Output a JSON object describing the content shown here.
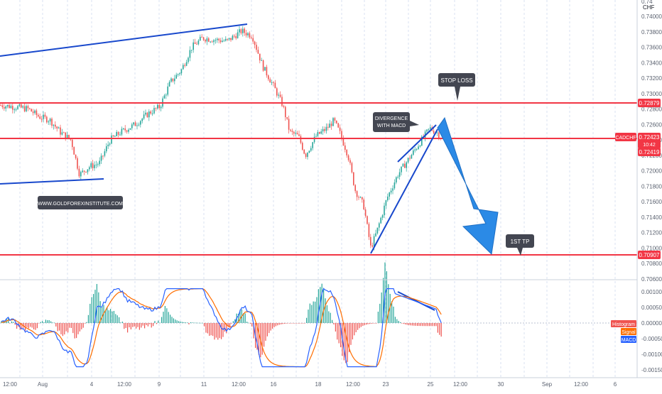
{
  "header": {
    "currency": "CHF"
  },
  "price_axis": {
    "ticks": [
      {
        "v": 0.74,
        "label": "0.74000"
      },
      {
        "v": 0.738,
        "label": "0.73800"
      },
      {
        "v": 0.736,
        "label": "0.73600"
      },
      {
        "v": 0.734,
        "label": "0.73400"
      },
      {
        "v": 0.732,
        "label": "0.73200"
      },
      {
        "v": 0.73,
        "label": "0.73000"
      },
      {
        "v": 0.728,
        "label": "0.72800"
      },
      {
        "v": 0.726,
        "label": "0.72600"
      },
      {
        "v": 0.724,
        "label": "0.72400"
      },
      {
        "v": 0.722,
        "label": "0.72200"
      },
      {
        "v": 0.72,
        "label": "0.72000"
      },
      {
        "v": 0.718,
        "label": "0.71800"
      },
      {
        "v": 0.716,
        "label": "0.71600"
      },
      {
        "v": 0.714,
        "label": "0.71400"
      },
      {
        "v": 0.712,
        "label": "0.71200"
      },
      {
        "v": 0.71,
        "label": "0.71000"
      },
      {
        "v": 0.708,
        "label": "0.70800"
      },
      {
        "v": 0.706,
        "label": "0.70600"
      }
    ]
  },
  "macd_axis": {
    "ticks": [
      {
        "v": 0.001,
        "label": "0.00100"
      },
      {
        "v": 0.0005,
        "label": "0.00050"
      },
      {
        "v": 0.0,
        "label": "0.00000"
      },
      {
        "v": -0.0005,
        "label": "-0.00050"
      },
      {
        "v": -0.001,
        "label": "-0.00100"
      },
      {
        "v": -0.0015,
        "label": "-0.00150"
      }
    ],
    "labels": {
      "histogram": "Histogram",
      "signal": "Signal",
      "macd": "MACD"
    }
  },
  "time_axis": {
    "labels": [
      "12:00",
      "Aug",
      "4",
      "12:00",
      "9",
      "11",
      "12:00",
      "16",
      "18",
      "12:00",
      "23",
      "25",
      "12:00",
      "30",
      "Sep",
      "12:00",
      "6"
    ]
  },
  "levels": {
    "stop_loss": {
      "price": 0.72879,
      "label": "0.72879"
    },
    "entry": {
      "price": 0.72419,
      "label": "0.72419"
    },
    "target": {
      "price": 0.70907,
      "label": "0.70907"
    },
    "current": {
      "price": 0.72423,
      "label": "0.72423",
      "symbol": "CADCHF",
      "countdown": "10:42"
    }
  },
  "annotations": {
    "stop_loss": "STOP LOSS",
    "target": "1ST TP",
    "divergence": [
      "DIVERGENCE",
      "WITH MACD"
    ],
    "website": "WWW.GOLDFOREXINSTITUTE.COM"
  },
  "colors": {
    "up": "#26a69a",
    "down": "#ef5350",
    "level": "#f23645",
    "trend": "#1848cc",
    "arrow": "#2b8ae6",
    "macd": "#2962ff",
    "signal": "#ff6d00",
    "note_bg": "#434651",
    "grid": "#d9e2f0"
  },
  "chart_data": {
    "type": "candlestick",
    "symbol": "CADCHF",
    "price_range": [
      0.706,
      0.7474
    ],
    "path_points": [
      [
        0,
        0.7285
      ],
      [
        20,
        0.7283
      ],
      [
        40,
        0.728
      ],
      [
        55,
        0.727
      ],
      [
        70,
        0.7266
      ],
      [
        85,
        0.725
      ],
      [
        100,
        0.724
      ],
      [
        112,
        0.7195
      ],
      [
        125,
        0.7205
      ],
      [
        140,
        0.721
      ],
      [
        155,
        0.724
      ],
      [
        170,
        0.725
      ],
      [
        190,
        0.726
      ],
      [
        210,
        0.7275
      ],
      [
        225,
        0.7283
      ],
      [
        240,
        0.7315
      ],
      [
        255,
        0.733
      ],
      [
        270,
        0.736
      ],
      [
        285,
        0.7372
      ],
      [
        300,
        0.737
      ],
      [
        320,
        0.7368
      ],
      [
        340,
        0.7381
      ],
      [
        355,
        0.7375
      ],
      [
        370,
        0.7335
      ],
      [
        385,
        0.731
      ],
      [
        398,
        0.7285
      ],
      [
        408,
        0.725
      ],
      [
        420,
        0.7245
      ],
      [
        430,
        0.722
      ],
      [
        445,
        0.7245
      ],
      [
        460,
        0.7255
      ],
      [
        470,
        0.7265
      ],
      [
        478,
        0.725
      ],
      [
        490,
        0.722
      ],
      [
        500,
        0.7175
      ],
      [
        512,
        0.7155
      ],
      [
        522,
        0.71
      ],
      [
        530,
        0.712
      ],
      [
        545,
        0.7165
      ],
      [
        560,
        0.7195
      ],
      [
        575,
        0.7215
      ],
      [
        590,
        0.7235
      ],
      [
        605,
        0.7255
      ],
      [
        615,
        0.725
      ],
      [
        622,
        0.7242
      ]
    ]
  }
}
